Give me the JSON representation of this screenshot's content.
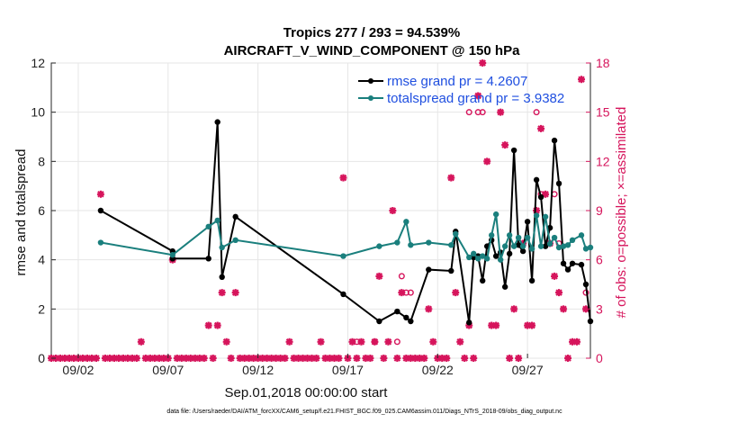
{
  "chart_data": {
    "type": "line",
    "title_line1": "Tropics 277 / 293 = 94.539%",
    "title_line2": "AIRCRAFT_V_WIND_COMPONENT @ 150 hPa",
    "xlabel": "Sep.01,2018 00:00:00 start",
    "ylabel": "rmse and totalspread",
    "y2label": "# of obs: o=possible; ×=assimilated",
    "footer": "data file: /Users/raeder/DAI/ATM_forcXX/CAM6_setup/f.e21.FHIST_BGC.f09_025.CAM6assim.011/Diags_NTrS_2018-09/obs_diag_output.nc",
    "xlim": [
      0.5,
      30.5
    ],
    "ylim": [
      0,
      12
    ],
    "y2lim": [
      0,
      18
    ],
    "xticks": [
      {
        "x": 2,
        "label": "09/02"
      },
      {
        "x": 7,
        "label": "09/07"
      },
      {
        "x": 12,
        "label": "09/12"
      },
      {
        "x": 17,
        "label": "09/17"
      },
      {
        "x": 22,
        "label": "09/22"
      },
      {
        "x": 27,
        "label": "09/27"
      }
    ],
    "yticks": [
      "0",
      "2",
      "4",
      "6",
      "8",
      "10",
      "12"
    ],
    "y2ticks": [
      "0",
      "3",
      "6",
      "9",
      "12",
      "15",
      "18"
    ],
    "grid": true,
    "legend_position": "top-right",
    "series": [
      {
        "name": "rmse grand pr = 4.2607",
        "color": "#000000",
        "points": [
          [
            3.25,
            6.0
          ],
          [
            7.25,
            4.35
          ],
          [
            7.25,
            4.05
          ],
          [
            9.25,
            4.05
          ],
          [
            9.75,
            9.6
          ],
          [
            10.0,
            3.3
          ],
          [
            10.75,
            5.75
          ],
          [
            16.75,
            2.6
          ],
          [
            18.75,
            1.5
          ],
          [
            19.75,
            1.9
          ],
          [
            20.25,
            1.65
          ],
          [
            20.5,
            1.5
          ],
          [
            21.5,
            3.6
          ],
          [
            22.75,
            3.55
          ],
          [
            23.0,
            5.15
          ],
          [
            23.75,
            1.45
          ],
          [
            24.0,
            4.1
          ],
          [
            24.25,
            4.15
          ],
          [
            24.5,
            3.15
          ],
          [
            24.75,
            4.55
          ],
          [
            25.0,
            4.8
          ],
          [
            25.25,
            4.15
          ],
          [
            25.5,
            4.3
          ],
          [
            25.75,
            2.9
          ],
          [
            26.0,
            4.25
          ],
          [
            26.25,
            8.45
          ],
          [
            26.5,
            4.6
          ],
          [
            26.75,
            4.35
          ],
          [
            27.0,
            5.55
          ],
          [
            27.25,
            3.15
          ],
          [
            27.5,
            7.25
          ],
          [
            27.75,
            6.55
          ],
          [
            28.0,
            4.55
          ],
          [
            28.25,
            5.3
          ],
          [
            28.5,
            8.85
          ],
          [
            28.75,
            7.1
          ],
          [
            29.0,
            3.85
          ],
          [
            29.25,
            3.6
          ],
          [
            29.5,
            3.85
          ],
          [
            30.0,
            3.8
          ],
          [
            30.25,
            3.0
          ],
          [
            30.5,
            1.5
          ]
        ]
      },
      {
        "name": "totalspread grand pr = 3.9382",
        "color": "#1a7f7d",
        "points": [
          [
            3.25,
            4.7
          ],
          [
            7.25,
            4.2
          ],
          [
            9.25,
            5.35
          ],
          [
            9.75,
            5.6
          ],
          [
            10.0,
            4.5
          ],
          [
            10.75,
            4.8
          ],
          [
            16.75,
            4.15
          ],
          [
            18.75,
            4.55
          ],
          [
            19.75,
            4.7
          ],
          [
            20.25,
            5.55
          ],
          [
            20.5,
            4.6
          ],
          [
            21.5,
            4.7
          ],
          [
            22.75,
            4.6
          ],
          [
            23.0,
            5.05
          ],
          [
            23.75,
            4.1
          ],
          [
            24.0,
            4.25
          ],
          [
            24.25,
            4.05
          ],
          [
            24.5,
            4.15
          ],
          [
            24.75,
            4.05
          ],
          [
            25.0,
            5.0
          ],
          [
            25.25,
            5.85
          ],
          [
            25.5,
            4.0
          ],
          [
            25.75,
            4.55
          ],
          [
            26.0,
            5.0
          ],
          [
            26.25,
            4.55
          ],
          [
            26.5,
            4.9
          ],
          [
            26.75,
            4.55
          ],
          [
            27.0,
            4.9
          ],
          [
            27.25,
            4.45
          ],
          [
            27.5,
            5.8
          ],
          [
            27.75,
            4.55
          ],
          [
            28.0,
            5.75
          ],
          [
            28.25,
            4.65
          ],
          [
            28.5,
            4.9
          ],
          [
            28.75,
            4.5
          ],
          [
            29.0,
            4.55
          ],
          [
            29.25,
            4.6
          ],
          [
            29.5,
            4.8
          ],
          [
            30.0,
            5.0
          ],
          [
            30.25,
            4.45
          ],
          [
            30.5,
            4.5
          ]
        ]
      }
    ],
    "obs_counts": {
      "color": "#d6155c",
      "assimilated": [
        [
          0.5,
          0
        ],
        [
          0.75,
          0
        ],
        [
          1.0,
          0
        ],
        [
          1.25,
          0
        ],
        [
          1.5,
          0
        ],
        [
          1.75,
          0
        ],
        [
          2.0,
          0
        ],
        [
          2.25,
          0
        ],
        [
          2.5,
          0
        ],
        [
          2.75,
          0
        ],
        [
          3.0,
          0
        ],
        [
          3.25,
          10
        ],
        [
          3.5,
          0
        ],
        [
          3.75,
          0
        ],
        [
          4.0,
          0
        ],
        [
          4.25,
          0
        ],
        [
          4.5,
          0
        ],
        [
          4.75,
          0
        ],
        [
          5.0,
          0
        ],
        [
          5.25,
          0
        ],
        [
          5.5,
          1
        ],
        [
          5.75,
          0
        ],
        [
          6.0,
          0
        ],
        [
          6.25,
          0
        ],
        [
          6.5,
          0
        ],
        [
          6.75,
          0
        ],
        [
          7.0,
          0
        ],
        [
          7.25,
          6
        ],
        [
          7.5,
          0
        ],
        [
          7.75,
          0
        ],
        [
          8.0,
          0
        ],
        [
          8.25,
          0
        ],
        [
          8.5,
          0
        ],
        [
          8.75,
          0
        ],
        [
          9.0,
          0
        ],
        [
          9.25,
          2
        ],
        [
          9.5,
          0
        ],
        [
          9.75,
          2
        ],
        [
          10.0,
          4
        ],
        [
          10.25,
          1
        ],
        [
          10.5,
          0
        ],
        [
          10.75,
          4
        ],
        [
          11.0,
          0
        ],
        [
          11.25,
          0
        ],
        [
          11.5,
          0
        ],
        [
          11.75,
          0
        ],
        [
          12.0,
          0
        ],
        [
          12.25,
          0
        ],
        [
          12.5,
          0
        ],
        [
          12.75,
          0
        ],
        [
          13.0,
          0
        ],
        [
          13.25,
          0
        ],
        [
          13.5,
          0
        ],
        [
          13.75,
          1
        ],
        [
          14.0,
          0
        ],
        [
          14.25,
          0
        ],
        [
          14.5,
          0
        ],
        [
          14.75,
          0
        ],
        [
          15.0,
          0
        ],
        [
          15.25,
          0
        ],
        [
          15.5,
          1
        ],
        [
          15.75,
          0
        ],
        [
          16.0,
          0
        ],
        [
          16.25,
          0
        ],
        [
          16.5,
          0
        ],
        [
          16.75,
          11
        ],
        [
          17.0,
          0
        ],
        [
          17.25,
          1
        ],
        [
          17.5,
          0
        ],
        [
          17.75,
          1
        ],
        [
          18.0,
          0
        ],
        [
          18.25,
          0
        ],
        [
          18.5,
          1
        ],
        [
          18.75,
          5
        ],
        [
          19.0,
          0
        ],
        [
          19.25,
          1
        ],
        [
          19.5,
          9
        ],
        [
          19.75,
          0
        ],
        [
          20.0,
          4
        ],
        [
          20.25,
          0
        ],
        [
          20.5,
          0
        ],
        [
          20.75,
          0
        ],
        [
          21.0,
          0
        ],
        [
          21.25,
          0
        ],
        [
          21.5,
          3
        ],
        [
          21.75,
          1
        ],
        [
          22.0,
          0
        ],
        [
          22.25,
          0
        ],
        [
          22.5,
          0
        ],
        [
          22.75,
          11
        ],
        [
          23.0,
          4
        ],
        [
          23.25,
          1
        ],
        [
          23.5,
          0
        ],
        [
          23.75,
          2
        ],
        [
          24.0,
          0
        ],
        [
          24.25,
          16
        ],
        [
          24.5,
          18
        ],
        [
          24.75,
          12
        ],
        [
          25.0,
          2
        ],
        [
          25.25,
          2
        ],
        [
          25.5,
          15
        ],
        [
          25.75,
          13
        ],
        [
          26.0,
          0
        ],
        [
          26.25,
          3
        ],
        [
          26.5,
          0
        ],
        [
          26.75,
          7
        ],
        [
          27.0,
          2
        ],
        [
          27.25,
          2
        ],
        [
          27.5,
          9
        ],
        [
          27.75,
          14
        ],
        [
          28.0,
          10
        ],
        [
          28.25,
          7
        ],
        [
          28.5,
          5
        ],
        [
          28.75,
          4
        ],
        [
          29.0,
          3
        ],
        [
          29.25,
          0
        ],
        [
          29.5,
          1
        ],
        [
          29.75,
          1
        ],
        [
          30.0,
          17
        ],
        [
          30.25,
          3
        ]
      ],
      "possible": [
        [
          17.5,
          1
        ],
        [
          18.5,
          1
        ],
        [
          19.75,
          1
        ],
        [
          20.0,
          5
        ],
        [
          20.25,
          4
        ],
        [
          20.5,
          4
        ],
        [
          23.75,
          15
        ],
        [
          24.25,
          15
        ],
        [
          24.5,
          15
        ],
        [
          27.5,
          15
        ],
        [
          27.75,
          10
        ],
        [
          28.5,
          10
        ],
        [
          28.75,
          7
        ],
        [
          30.25,
          4
        ]
      ]
    }
  }
}
